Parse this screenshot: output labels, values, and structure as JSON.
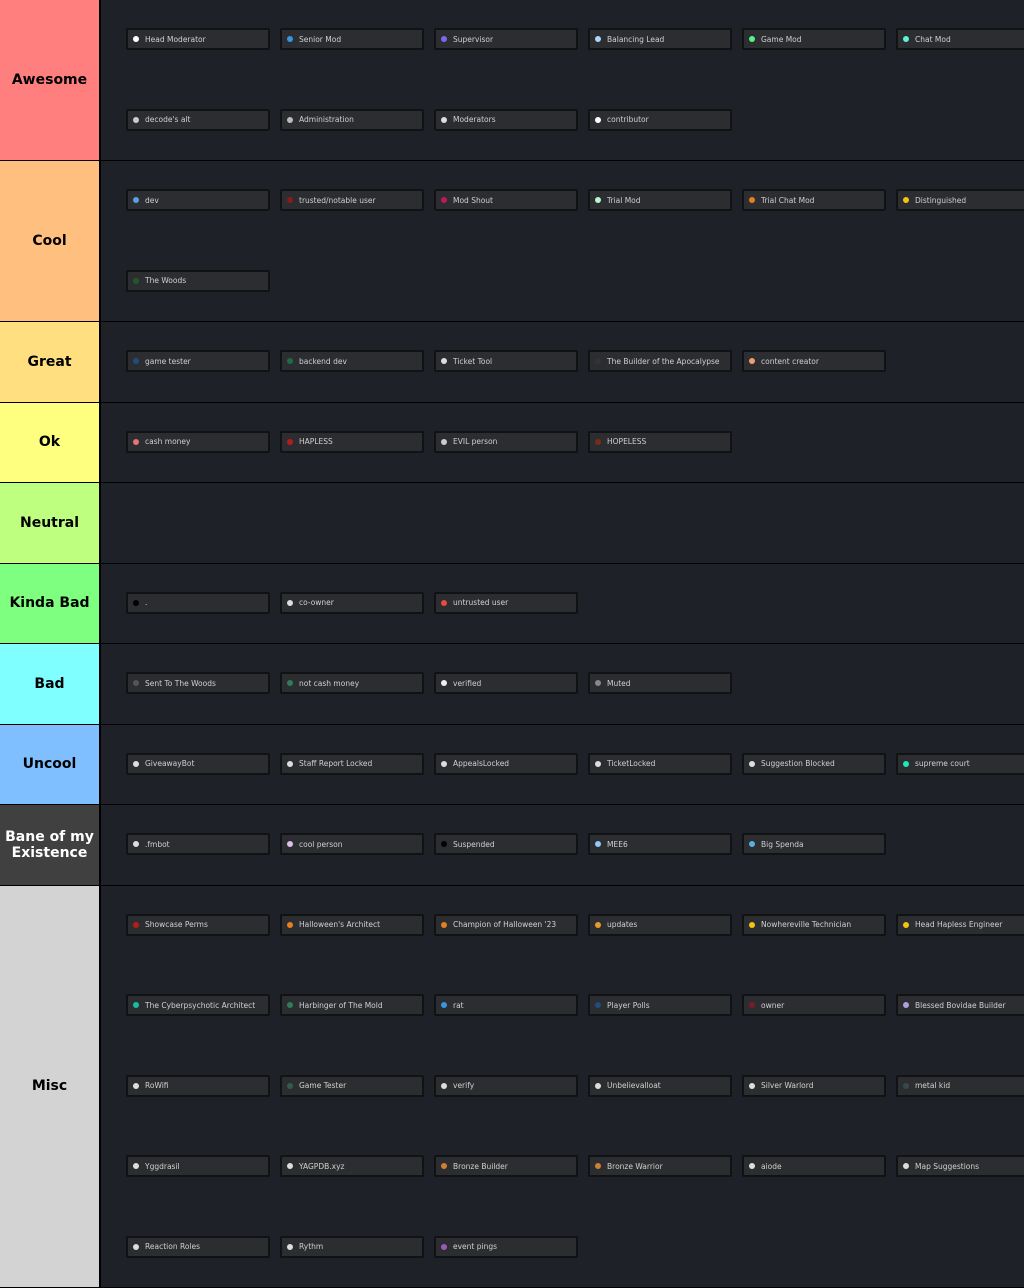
{
  "tiers": [
    {
      "label": "Awesome",
      "color": "#ff7f7f",
      "items": [
        {
          "label": "Head Moderator",
          "dot": "#ffffff"
        },
        {
          "label": "Senior Mod",
          "dot": "#3498db"
        },
        {
          "label": "Supervisor",
          "dot": "#7b68ee"
        },
        {
          "label": "Balancing Lead",
          "dot": "#a8d8ff"
        },
        {
          "label": "Game Mod",
          "dot": "#57f287"
        },
        {
          "label": "Chat Mod",
          "dot": "#5ff2d8"
        },
        {
          "label": "decode's alt",
          "dot": "#cccccc"
        },
        {
          "label": "Administration",
          "dot": "#bbbbbb"
        },
        {
          "label": "Moderators",
          "dot": "#dddddd"
        },
        {
          "label": "contributor",
          "dot": "#ffffff"
        }
      ]
    },
    {
      "label": "Cool",
      "color": "#ffbf7f",
      "items": [
        {
          "label": "dev",
          "dot": "#5aa0e6"
        },
        {
          "label": "trusted/notable user",
          "dot": "#8b1a1a"
        },
        {
          "label": "Mod Shout",
          "dot": "#c2185b"
        },
        {
          "label": "Trial Mod",
          "dot": "#b9f6ca"
        },
        {
          "label": "Trial Chat Mod",
          "dot": "#e67e22"
        },
        {
          "label": "Distinguished",
          "dot": "#f1c40f"
        },
        {
          "label": "The Woods",
          "dot": "#1e5a2a"
        }
      ]
    },
    {
      "label": "Great",
      "color": "#ffdf7f",
      "items": [
        {
          "label": "game tester",
          "dot": "#1f4e79"
        },
        {
          "label": "backend dev",
          "dot": "#1e6b4a"
        },
        {
          "label": "Ticket Tool",
          "dot": "#dddddd"
        },
        {
          "label": "The Builder of the Apocalypse",
          "dot": "#333333"
        },
        {
          "label": "content creator",
          "dot": "#f0a070"
        }
      ]
    },
    {
      "label": "Ok",
      "color": "#ffff7f",
      "items": [
        {
          "label": "cash money",
          "dot": "#e57373"
        },
        {
          "label": "HAPLESS",
          "dot": "#b71c1c"
        },
        {
          "label": "EVIL person",
          "dot": "#cccccc"
        },
        {
          "label": "HOPELESS",
          "dot": "#7a2a1a"
        }
      ]
    },
    {
      "label": "Neutral",
      "color": "#bfff7f",
      "items": []
    },
    {
      "label": "Kinda Bad",
      "color": "#7fff7f",
      "items": [
        {
          "label": ".",
          "dot": "#000000"
        },
        {
          "label": "co-owner",
          "dot": "#dddddd"
        },
        {
          "label": "untrusted user",
          "dot": "#e74c3c"
        }
      ]
    },
    {
      "label": "Bad",
      "color": "#7fffff",
      "items": [
        {
          "label": "Sent To The Woods",
          "dot": "#555555"
        },
        {
          "label": "not cash money",
          "dot": "#2e7d5b"
        },
        {
          "label": "verified",
          "dot": "#eeeeee"
        },
        {
          "label": "Muted",
          "dot": "#888888"
        }
      ]
    },
    {
      "label": "Uncool",
      "color": "#7fbfff",
      "items": [
        {
          "label": "GiveawayBot",
          "dot": "#dddddd"
        },
        {
          "label": "Staff Report Locked",
          "dot": "#dddddd"
        },
        {
          "label": "AppealsLocked",
          "dot": "#dddddd"
        },
        {
          "label": "TicketLocked",
          "dot": "#dddddd"
        },
        {
          "label": "Suggestion Blocked",
          "dot": "#dddddd"
        },
        {
          "label": "supreme court",
          "dot": "#1de9b6"
        }
      ]
    },
    {
      "label": "Bane of my Existence",
      "color": "#404040",
      "items": [
        {
          "label": ".fmbot",
          "dot": "#dddddd"
        },
        {
          "label": "cool person",
          "dot": "#e1bee7"
        },
        {
          "label": "Suspended",
          "dot": "#000000"
        },
        {
          "label": "MEE6",
          "dot": "#90caf9"
        },
        {
          "label": "Big Spenda",
          "dot": "#5dade2"
        }
      ]
    },
    {
      "label": "Misc",
      "color": "#d3d3d3",
      "items": [
        {
          "label": "Showcase Perms",
          "dot": "#b71c1c"
        },
        {
          "label": "Halloween's Architect",
          "dot": "#e67e22"
        },
        {
          "label": "Champion of Halloween '23",
          "dot": "#e67e22"
        },
        {
          "label": "updates",
          "dot": "#e69a28"
        },
        {
          "label": "Nowhereville Technician",
          "dot": "#f1c40f"
        },
        {
          "label": "Head Hapless Engineer",
          "dot": "#f1c40f"
        },
        {
          "label": "The Cyberpsychotic Architect",
          "dot": "#1abc9c"
        },
        {
          "label": "Harbinger of The Mold",
          "dot": "#2e7d5b"
        },
        {
          "label": "rat",
          "dot": "#3498db"
        },
        {
          "label": "Player Polls",
          "dot": "#1f4e79"
        },
        {
          "label": "owner",
          "dot": "#7a1a2a"
        },
        {
          "label": "Blessed Bovidae Builder",
          "dot": "#b39ddb"
        },
        {
          "label": "RoWifi",
          "dot": "#dddddd"
        },
        {
          "label": "Game Tester",
          "dot": "#2e5e4e"
        },
        {
          "label": "verify",
          "dot": "#dddddd"
        },
        {
          "label": "Unbelievalloat",
          "dot": "#dddddd"
        },
        {
          "label": "Silver Warlord",
          "dot": "#dddddd"
        },
        {
          "label": "metal kid",
          "dot": "#37474f"
        },
        {
          "label": "Yggdrasil",
          "dot": "#dddddd"
        },
        {
          "label": "YAGPDB.xyz",
          "dot": "#dddddd"
        },
        {
          "label": "Bronze Builder",
          "dot": "#cd7f32"
        },
        {
          "label": "Bronze Warrior",
          "dot": "#cd7f32"
        },
        {
          "label": "aiode",
          "dot": "#dddddd"
        },
        {
          "label": "Map Suggestions",
          "dot": "#dddddd"
        },
        {
          "label": "Reaction Roles",
          "dot": "#dddddd"
        },
        {
          "label": "Rythm",
          "dot": "#dddddd"
        },
        {
          "label": "event pings",
          "dot": "#9b59b6"
        }
      ]
    }
  ]
}
